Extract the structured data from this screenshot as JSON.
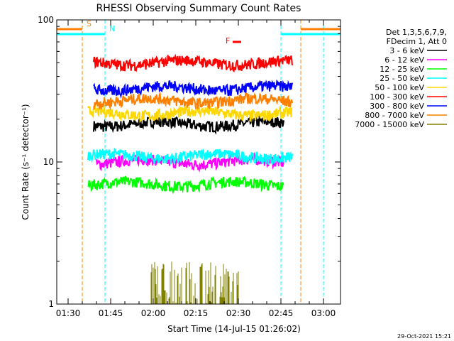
{
  "chart_data": {
    "type": "line",
    "title": "RHESSI Observing Summary Count Rates",
    "xlabel": "Start Time (14-Jul-15 01:26:02)",
    "ylabel": "Count Rate (s⁻¹ detector⁻¹)",
    "y_scale": "log",
    "ylim": [
      1,
      100
    ],
    "y_ticks": [
      {
        "value": 1,
        "label": "1"
      },
      {
        "value": 10,
        "label": "10"
      },
      {
        "value": 100,
        "label": "100"
      }
    ],
    "xlim_minutes": [
      86,
      186
    ],
    "x_ticks": [
      {
        "minute": 90,
        "label": "01:30"
      },
      {
        "minute": 105,
        "label": "01:45"
      },
      {
        "minute": 120,
        "label": "02:00"
      },
      {
        "minute": 135,
        "label": "02:15"
      },
      {
        "minute": 150,
        "label": "02:30"
      },
      {
        "minute": 165,
        "label": "02:45"
      },
      {
        "minute": 180,
        "label": "03:00"
      }
    ],
    "legend_header": [
      "Det 1,3,5,6,7,9,",
      "FDecim 1, Att 0"
    ],
    "legend_position": "right",
    "series": [
      {
        "name": "3 - 6 keV",
        "color": "#000000",
        "level": 18.5,
        "start": 99,
        "end": 166
      },
      {
        "name": "6 - 12 keV",
        "color": "#ff00ff",
        "level": 10.0,
        "start": 100,
        "end": 166
      },
      {
        "name": "12 - 25 keV",
        "color": "#00ff00",
        "level": 7.0,
        "start": 97,
        "end": 166
      },
      {
        "name": "25 - 50 keV",
        "color": "#00ffff",
        "level": 11.0,
        "start": 97,
        "end": 169
      },
      {
        "name": "50 - 100 keV",
        "color": "#ffd700",
        "level": 22.0,
        "start": 97,
        "end": 169
      },
      {
        "name": "100 - 300 keV",
        "color": "#ff0000",
        "level": 50.0,
        "start": 99,
        "end": 169
      },
      {
        "name": "300 - 800 keV",
        "color": "#0000ff",
        "level": 33.0,
        "start": 99,
        "end": 169
      },
      {
        "name": "800 - 7000 keV",
        "color": "#ff8000",
        "level": 27.0,
        "start": 99,
        "end": 169
      },
      {
        "name": "7000 - 15000 keV",
        "color": "#808000",
        "level": 1.5,
        "start": 119,
        "end": 150
      }
    ],
    "annotations": [
      {
        "label": "S",
        "color": "#ff8000",
        "start": 86,
        "end": 95
      },
      {
        "label": "N",
        "color": "#00ffff",
        "start": 86,
        "end": 103
      },
      {
        "label": "F",
        "color": "#ff0000",
        "start": 148,
        "end": 151
      },
      {
        "label": "",
        "color": "#00ffff",
        "start": 165,
        "end": 186
      },
      {
        "label": "",
        "color": "#ff8000",
        "start": 172,
        "end": 186
      }
    ],
    "vertical_markers": [
      {
        "minute": 95,
        "color": "#ff8000"
      },
      {
        "minute": 103,
        "color": "#00ffff"
      },
      {
        "minute": 165,
        "color": "#00ffff"
      },
      {
        "minute": 172,
        "color": "#ff8000"
      },
      {
        "minute": 180,
        "color": "#00ffff"
      }
    ]
  },
  "timestamp": "29-Oct-2021 15:21"
}
